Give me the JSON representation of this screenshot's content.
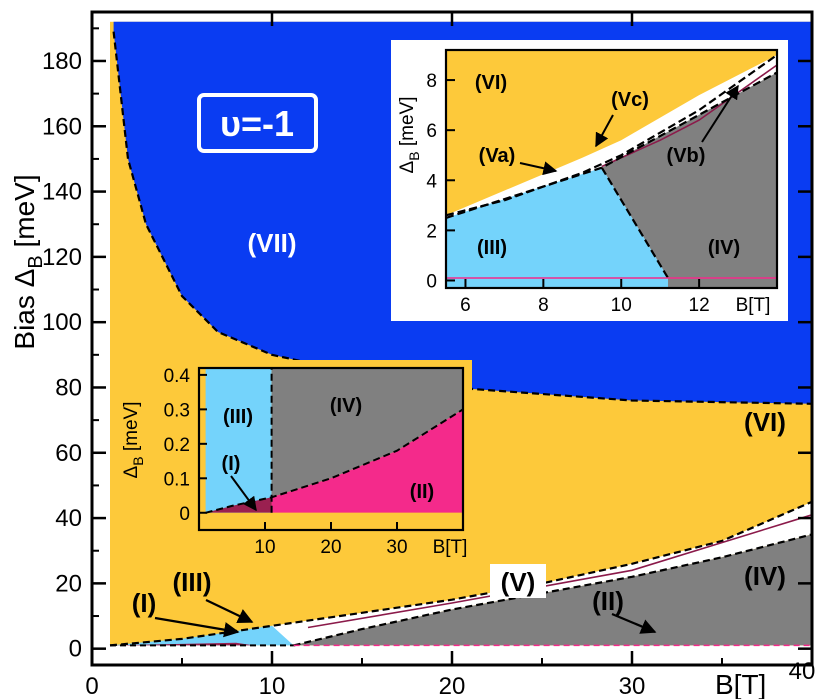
{
  "chart_data": [
    {
      "type": "area",
      "title": "",
      "xlabel": "B[T]",
      "ylabel": "Bias ΔB [meV]",
      "ylabel_main": "Bias Δ",
      "ylabel_sub": "B",
      "ylabel_unit": "[meV]",
      "xlim": [
        0,
        40
      ],
      "ylim": [
        -5,
        195
      ],
      "x_ticks": [
        0,
        10,
        20,
        30,
        40
      ],
      "y_ticks": [
        0,
        20,
        40,
        60,
        80,
        100,
        120,
        140,
        160,
        180
      ],
      "filling_label": "υ=-1",
      "phase_labels": [
        "(I)",
        "(III)",
        "(V)",
        "(II)",
        "(IV)",
        "(VI)",
        "(VII)"
      ],
      "boundaries": {
        "VII_VI": [
          [
            1.2,
            189
          ],
          [
            2,
            150
          ],
          [
            3,
            130
          ],
          [
            5,
            108
          ],
          [
            7,
            97
          ],
          [
            10,
            90
          ],
          [
            15,
            84
          ],
          [
            20,
            80
          ],
          [
            30,
            76
          ],
          [
            40,
            75
          ]
        ],
        "VI_V": [
          [
            1,
            1
          ],
          [
            5,
            3
          ],
          [
            10,
            7
          ],
          [
            15,
            11
          ],
          [
            20,
            15
          ],
          [
            25,
            20
          ],
          [
            30,
            26
          ],
          [
            35,
            33
          ],
          [
            40,
            45
          ]
        ],
        "V_IV": [
          [
            11.2,
            1
          ],
          [
            15,
            6
          ],
          [
            20,
            12
          ],
          [
            25,
            17
          ],
          [
            30,
            22
          ],
          [
            35,
            28
          ],
          [
            40,
            35
          ]
        ],
        "III_IV": [
          [
            1,
            1
          ],
          [
            11.2,
            1
          ]
        ]
      },
      "colors": {
        "VII": "#0a3cf2",
        "VI": "#fdc93a",
        "V": "#ffffff",
        "IV": "#808080",
        "III": "#74d3fb",
        "II": "#f42a8b",
        "I": "#9a2050"
      }
    },
    {
      "type": "area",
      "title": "",
      "xlabel": "B[T]",
      "ylabel": "ΔB [meV]",
      "ylabel_main": "Δ",
      "ylabel_sub": "B",
      "ylabel_unit": "[meV]",
      "xlim": [
        5.5,
        14
      ],
      "ylim": [
        -0.3,
        9.2
      ],
      "x_ticks": [
        6,
        8,
        10,
        12
      ],
      "y_ticks": [
        0,
        2,
        4,
        6,
        8
      ],
      "phase_labels": [
        "(VI)",
        "(Vc)",
        "(Va)",
        "(Vb)",
        "(III)",
        "(IV)"
      ],
      "boundaries": {
        "VI_V": [
          [
            5.5,
            2.6
          ],
          [
            7,
            3.2
          ],
          [
            9,
            4.3
          ],
          [
            10,
            5
          ],
          [
            12,
            6.7
          ],
          [
            14,
            9.2
          ]
        ],
        "Va_Vb": [
          [
            5.5,
            2.5
          ],
          [
            9.5,
            4.5
          ]
        ],
        "V_IV": [
          [
            9.5,
            4.5
          ],
          [
            14,
            8.3
          ]
        ],
        "III_IV": [
          [
            9.5,
            4.5
          ],
          [
            11.2,
            0.1
          ]
        ]
      }
    },
    {
      "type": "area",
      "title": "",
      "xlabel": "B[T]",
      "ylabel": "ΔB [meV]",
      "ylabel_main": "Δ",
      "ylabel_sub": "B",
      "ylabel_unit": "[meV]",
      "xlim": [
        0,
        40
      ],
      "ylim": [
        -0.05,
        0.42
      ],
      "x_ticks": [
        10,
        20,
        30
      ],
      "y_ticks": [
        0,
        0.1,
        0.2,
        0.3,
        0.4
      ],
      "y_tick_labels": [
        "0",
        "0.1",
        "0.2",
        "0.3",
        "0.4"
      ],
      "phase_labels": [
        "(III)",
        "(IV)",
        "(I)",
        "(II)"
      ],
      "boundaries": {
        "IV_II": [
          [
            1,
            0
          ],
          [
            5,
            0.02
          ],
          [
            11,
            0.045
          ],
          [
            20,
            0.1
          ],
          [
            30,
            0.18
          ],
          [
            40,
            0.3
          ]
        ],
        "III_IV": [
          [
            11,
            0
          ],
          [
            11,
            0.42
          ]
        ]
      }
    }
  ]
}
